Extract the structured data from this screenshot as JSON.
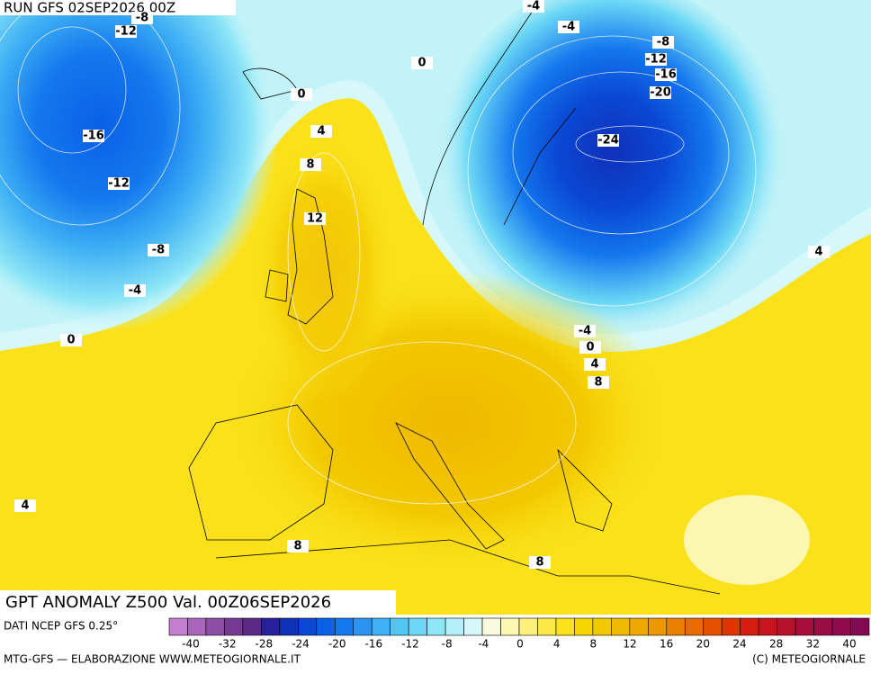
{
  "header": {
    "run": "RUN GFS 02SEP2026 00Z",
    "title": "GPT ANOMALY Z500 Val. 00Z06SEP2026",
    "source": "DATI NCEP GFS 0.25°"
  },
  "footer": {
    "left": "MTG-GFS — ELABORAZIONE WWW.METEOGIORNALE.IT",
    "right": "(C) METEOGIORNALE"
  },
  "contour_labels": [
    -8,
    -12,
    -16,
    -12,
    -8,
    -4,
    0,
    0,
    4,
    8,
    12,
    0,
    -4,
    -4,
    -8,
    -12,
    -16,
    -20,
    -24,
    4,
    -4,
    0,
    4,
    8,
    4,
    8,
    8
  ],
  "colorbar": {
    "ticks": [
      -40,
      -32,
      -28,
      -24,
      -20,
      -16,
      -12,
      -8,
      -4,
      0,
      4,
      8,
      12,
      16,
      20,
      24,
      28,
      32,
      40
    ],
    "colors": [
      "#c27fd0",
      "#a865bb",
      "#8f4ea6",
      "#773a92",
      "#5c2a86",
      "#27209a",
      "#1030b8",
      "#0a48d4",
      "#0a60e6",
      "#1478ee",
      "#2b94f2",
      "#3fb0f4",
      "#52c6f4",
      "#6cd8f5",
      "#8ee6f6",
      "#b4f0f7",
      "#d6f8fa",
      "#f8fbe0",
      "#fbf7b0",
      "#fcf07a",
      "#fbe846",
      "#fae11a",
      "#f5d600",
      "#f2c800",
      "#f0b800",
      "#eea800",
      "#ec9600",
      "#ea8000",
      "#e86a00",
      "#e65000",
      "#e23400",
      "#d81c10",
      "#c8141e",
      "#b8102c",
      "#a80e3a",
      "#9a0c44",
      "#8e0a4c",
      "#820a52"
    ]
  }
}
